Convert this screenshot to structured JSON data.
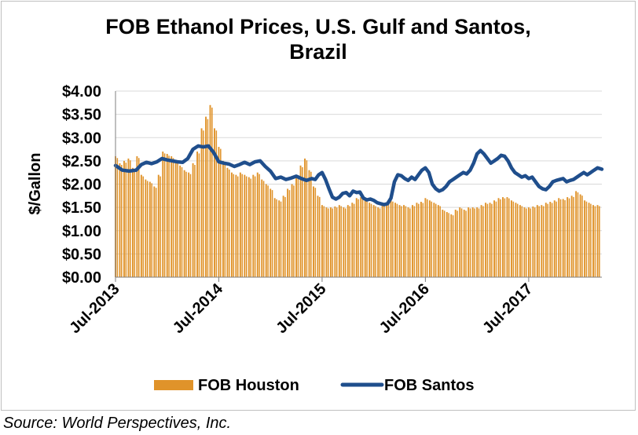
{
  "chart_data": {
    "type": "bar+line",
    "title_lines": [
      "FOB Ethanol Prices, U.S. Gulf and Santos,",
      "Brazil"
    ],
    "ylabel": "$/Gallon",
    "xlabel": "",
    "ylim": [
      0,
      4
    ],
    "yticks": [
      "$0.00",
      "$0.50",
      "$1.00",
      "$1.50",
      "$2.00",
      "$2.50",
      "$3.00",
      "$3.50",
      "$4.00"
    ],
    "xticks": [
      "Jul-2013",
      "Jul-2014",
      "Jul-2015",
      "Jul-2016",
      "Jul-2017"
    ],
    "x_range_months": [
      0,
      56.5
    ],
    "grid": "horizontal",
    "legend": "bottom",
    "series": [
      {
        "name": "FOB Houston",
        "type": "bar",
        "color": "#e0932a",
        "points": [
          [
            0,
            2.6
          ],
          [
            0.5,
            2.45
          ],
          [
            1,
            2.5
          ],
          [
            1.5,
            2.55
          ],
          [
            2,
            2.35
          ],
          [
            2.5,
            2.6
          ],
          [
            3,
            2.2
          ],
          [
            3.5,
            2.1
          ],
          [
            4,
            2.05
          ],
          [
            4.5,
            1.95
          ],
          [
            5,
            2.2
          ],
          [
            5.5,
            2.7
          ],
          [
            6,
            2.65
          ],
          [
            6.5,
            2.6
          ],
          [
            7,
            2.5
          ],
          [
            7.5,
            2.4
          ],
          [
            8,
            2.3
          ],
          [
            8.5,
            2.25
          ],
          [
            9,
            2.45
          ],
          [
            9.5,
            2.7
          ],
          [
            10,
            3.2
          ],
          [
            10.5,
            3.45
          ],
          [
            11,
            3.7
          ],
          [
            11.5,
            3.2
          ],
          [
            12,
            2.8
          ],
          [
            12.5,
            2.5
          ],
          [
            13,
            2.35
          ],
          [
            13.5,
            2.25
          ],
          [
            14,
            2.2
          ],
          [
            14.5,
            2.25
          ],
          [
            15,
            2.2
          ],
          [
            15.5,
            2.15
          ],
          [
            16,
            2.2
          ],
          [
            16.5,
            2.25
          ],
          [
            17,
            2.1
          ],
          [
            17.5,
            2.0
          ],
          [
            18,
            1.9
          ],
          [
            18.5,
            1.7
          ],
          [
            19,
            1.65
          ],
          [
            19.5,
            1.75
          ],
          [
            20,
            1.9
          ],
          [
            20.5,
            2.0
          ],
          [
            21,
            2.2
          ],
          [
            21.5,
            2.4
          ],
          [
            22,
            2.55
          ],
          [
            22.5,
            2.3
          ],
          [
            23,
            1.95
          ],
          [
            23.5,
            1.75
          ],
          [
            24,
            1.55
          ],
          [
            24.5,
            1.5
          ],
          [
            25,
            1.5
          ],
          [
            25.5,
            1.52
          ],
          [
            26,
            1.55
          ],
          [
            26.5,
            1.5
          ],
          [
            27,
            1.55
          ],
          [
            27.5,
            1.6
          ],
          [
            28,
            1.7
          ],
          [
            28.5,
            1.72
          ],
          [
            29,
            1.65
          ],
          [
            29.5,
            1.6
          ],
          [
            30,
            1.55
          ],
          [
            30.5,
            1.5
          ],
          [
            31,
            1.55
          ],
          [
            31.5,
            1.6
          ],
          [
            32,
            1.65
          ],
          [
            32.5,
            1.6
          ],
          [
            33,
            1.55
          ],
          [
            33.5,
            1.55
          ],
          [
            34,
            1.5
          ],
          [
            34.5,
            1.55
          ],
          [
            35,
            1.6
          ],
          [
            35.5,
            1.62
          ],
          [
            36,
            1.7
          ],
          [
            36.5,
            1.65
          ],
          [
            37,
            1.6
          ],
          [
            37.5,
            1.55
          ],
          [
            38,
            1.45
          ],
          [
            38.5,
            1.4
          ],
          [
            39,
            1.35
          ],
          [
            39.5,
            1.45
          ],
          [
            40,
            1.5
          ],
          [
            40.5,
            1.45
          ],
          [
            41,
            1.5
          ],
          [
            41.5,
            1.5
          ],
          [
            42,
            1.5
          ],
          [
            42.5,
            1.55
          ],
          [
            43,
            1.6
          ],
          [
            43.5,
            1.6
          ],
          [
            44,
            1.65
          ],
          [
            44.5,
            1.7
          ],
          [
            45,
            1.72
          ],
          [
            45.5,
            1.72
          ],
          [
            46,
            1.65
          ],
          [
            46.5,
            1.6
          ],
          [
            47,
            1.55
          ],
          [
            47.5,
            1.5
          ],
          [
            48,
            1.5
          ],
          [
            48.5,
            1.52
          ],
          [
            49,
            1.55
          ],
          [
            49.5,
            1.55
          ],
          [
            50,
            1.6
          ],
          [
            50.5,
            1.62
          ],
          [
            51,
            1.65
          ],
          [
            51.5,
            1.7
          ],
          [
            52,
            1.68
          ],
          [
            52.5,
            1.72
          ],
          [
            53,
            1.75
          ],
          [
            53.5,
            1.85
          ],
          [
            54,
            1.78
          ],
          [
            54.5,
            1.65
          ],
          [
            55,
            1.6
          ],
          [
            55.5,
            1.55
          ],
          [
            56,
            1.55
          ]
        ]
      },
      {
        "name": "FOB Santos",
        "type": "line",
        "color": "#1f4e8c",
        "points": [
          [
            0,
            2.4
          ],
          [
            0.8,
            2.3
          ],
          [
            1.6,
            2.28
          ],
          [
            2.4,
            2.3
          ],
          [
            3,
            2.42
          ],
          [
            3.6,
            2.47
          ],
          [
            4.2,
            2.44
          ],
          [
            4.8,
            2.48
          ],
          [
            5.4,
            2.55
          ],
          [
            6,
            2.52
          ],
          [
            6.6,
            2.5
          ],
          [
            7.2,
            2.48
          ],
          [
            7.8,
            2.47
          ],
          [
            8.4,
            2.55
          ],
          [
            9,
            2.75
          ],
          [
            9.6,
            2.82
          ],
          [
            10.2,
            2.8
          ],
          [
            10.8,
            2.82
          ],
          [
            11.4,
            2.68
          ],
          [
            12,
            2.48
          ],
          [
            12.6,
            2.45
          ],
          [
            13.2,
            2.43
          ],
          [
            13.8,
            2.38
          ],
          [
            14.4,
            2.42
          ],
          [
            15,
            2.47
          ],
          [
            15.6,
            2.42
          ],
          [
            16.2,
            2.48
          ],
          [
            16.8,
            2.5
          ],
          [
            17.4,
            2.38
          ],
          [
            18,
            2.28
          ],
          [
            18.6,
            2.12
          ],
          [
            19.2,
            2.15
          ],
          [
            19.8,
            2.1
          ],
          [
            20.4,
            2.13
          ],
          [
            21,
            2.17
          ],
          [
            21.6,
            2.12
          ],
          [
            22.2,
            2.08
          ],
          [
            22.8,
            2.12
          ],
          [
            23.2,
            2.1
          ],
          [
            23.6,
            2.2
          ],
          [
            24,
            2.25
          ],
          [
            24.4,
            2.1
          ],
          [
            24.8,
            1.9
          ],
          [
            25.2,
            1.72
          ],
          [
            25.6,
            1.68
          ],
          [
            26,
            1.72
          ],
          [
            26.4,
            1.8
          ],
          [
            26.8,
            1.82
          ],
          [
            27.2,
            1.75
          ],
          [
            27.6,
            1.85
          ],
          [
            28,
            1.82
          ],
          [
            28.4,
            1.83
          ],
          [
            28.8,
            1.7
          ],
          [
            29.2,
            1.66
          ],
          [
            29.6,
            1.68
          ],
          [
            30,
            1.65
          ],
          [
            30.4,
            1.6
          ],
          [
            30.8,
            1.58
          ],
          [
            31.2,
            1.56
          ],
          [
            31.6,
            1.58
          ],
          [
            32,
            1.7
          ],
          [
            32.4,
            2.05
          ],
          [
            32.8,
            2.2
          ],
          [
            33.2,
            2.18
          ],
          [
            33.6,
            2.12
          ],
          [
            34,
            2.08
          ],
          [
            34.4,
            2.15
          ],
          [
            34.8,
            2.1
          ],
          [
            35.2,
            2.2
          ],
          [
            35.6,
            2.3
          ],
          [
            36,
            2.35
          ],
          [
            36.4,
            2.25
          ],
          [
            36.8,
            2.0
          ],
          [
            37.2,
            1.9
          ],
          [
            37.6,
            1.85
          ],
          [
            38,
            1.88
          ],
          [
            38.4,
            1.95
          ],
          [
            38.8,
            2.05
          ],
          [
            39.2,
            2.1
          ],
          [
            39.6,
            2.15
          ],
          [
            40,
            2.2
          ],
          [
            40.4,
            2.25
          ],
          [
            40.8,
            2.22
          ],
          [
            41.2,
            2.3
          ],
          [
            41.6,
            2.45
          ],
          [
            42,
            2.65
          ],
          [
            42.4,
            2.72
          ],
          [
            42.8,
            2.65
          ],
          [
            43.2,
            2.55
          ],
          [
            43.6,
            2.45
          ],
          [
            44,
            2.5
          ],
          [
            44.4,
            2.55
          ],
          [
            44.8,
            2.62
          ],
          [
            45.2,
            2.6
          ],
          [
            45.6,
            2.5
          ],
          [
            46,
            2.35
          ],
          [
            46.4,
            2.25
          ],
          [
            46.8,
            2.2
          ],
          [
            47.2,
            2.15
          ],
          [
            47.6,
            2.18
          ],
          [
            48,
            2.12
          ],
          [
            48.4,
            2.15
          ],
          [
            48.8,
            2.05
          ],
          [
            49.2,
            1.95
          ],
          [
            49.6,
            1.9
          ],
          [
            50,
            1.88
          ],
          [
            50.4,
            1.95
          ],
          [
            50.8,
            2.05
          ],
          [
            51.2,
            2.08
          ],
          [
            51.6,
            2.1
          ],
          [
            52,
            2.12
          ],
          [
            52.4,
            2.05
          ],
          [
            52.8,
            2.08
          ],
          [
            53.2,
            2.1
          ],
          [
            53.6,
            2.15
          ],
          [
            54,
            2.2
          ],
          [
            54.4,
            2.25
          ],
          [
            54.8,
            2.2
          ],
          [
            55.2,
            2.25
          ],
          [
            55.6,
            2.3
          ],
          [
            56,
            2.35
          ],
          [
            56.5,
            2.32
          ]
        ]
      }
    ],
    "source": "Source: World Perspectives, Inc."
  }
}
